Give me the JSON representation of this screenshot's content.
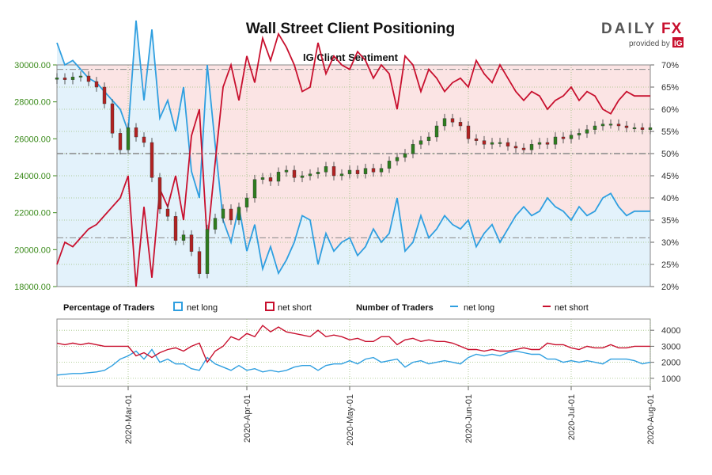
{
  "header": {
    "title": "Wall Street Client Positioning",
    "subtitle": "IG Client Sentiment",
    "logo_text_left": "DAILY",
    "logo_text_right": "FX",
    "logo_provided": "provided by",
    "logo_badge": "IG"
  },
  "colors": {
    "net_long": "#2f9fe0",
    "net_short": "#c8102e",
    "price_axis": "#3a8a1a",
    "candle_up": "#2e7d1f",
    "candle_down": "#b22222",
    "short_fill": "#fbe4e4",
    "long_fill": "#e3f2fb",
    "ref_line": "#888888"
  },
  "legend": {
    "pct_title": "Percentage of Traders",
    "pct_long": "net long",
    "pct_short": "net short",
    "num_title": "Number of Traders",
    "num_long": "net long",
    "num_short": "net short"
  },
  "chart_data": [
    {
      "type": "line",
      "title": "IG Client Sentiment",
      "x": [
        "2020-02-10",
        "2020-02-12",
        "2020-02-14",
        "2020-02-17",
        "2020-02-19",
        "2020-02-21",
        "2020-02-24",
        "2020-02-26",
        "2020-02-28",
        "2020-03-02",
        "2020-03-04",
        "2020-03-06",
        "2020-03-09",
        "2020-03-11",
        "2020-03-13",
        "2020-03-16",
        "2020-03-18",
        "2020-03-20",
        "2020-03-23",
        "2020-03-25",
        "2020-03-27",
        "2020-03-30",
        "2020-04-01",
        "2020-04-03",
        "2020-04-06",
        "2020-04-08",
        "2020-04-10",
        "2020-04-13",
        "2020-04-15",
        "2020-04-17",
        "2020-04-20",
        "2020-04-22",
        "2020-04-24",
        "2020-04-27",
        "2020-04-29",
        "2020-05-01",
        "2020-05-04",
        "2020-05-06",
        "2020-05-08",
        "2020-05-11",
        "2020-05-13",
        "2020-05-15",
        "2020-05-18",
        "2020-05-20",
        "2020-05-22",
        "2020-05-25",
        "2020-05-27",
        "2020-05-29",
        "2020-06-01",
        "2020-06-03",
        "2020-06-05",
        "2020-06-08",
        "2020-06-10",
        "2020-06-12",
        "2020-06-15",
        "2020-06-17",
        "2020-06-19",
        "2020-06-22",
        "2020-06-24",
        "2020-06-26",
        "2020-06-29",
        "2020-07-01",
        "2020-07-03",
        "2020-07-06",
        "2020-07-08",
        "2020-07-10",
        "2020-07-13",
        "2020-07-15",
        "2020-07-17",
        "2020-07-20",
        "2020-07-22",
        "2020-07-24",
        "2020-07-27",
        "2020-07-29",
        "2020-07-31",
        "2020-08-03"
      ],
      "series": [
        {
          "name": "net long",
          "axis": "right",
          "unit": "%",
          "values": [
            75,
            70,
            71,
            69,
            67,
            66,
            64,
            62,
            60,
            55,
            80,
            62,
            78,
            58,
            62,
            55,
            65,
            46,
            40,
            70,
            52,
            35,
            30,
            38,
            28,
            34,
            24,
            29,
            23,
            26,
            30,
            36,
            35,
            25,
            32,
            28,
            30,
            31,
            27,
            29,
            33,
            30,
            32,
            40,
            28,
            30,
            36,
            31,
            33,
            36,
            34,
            33,
            35,
            29,
            32,
            34,
            30,
            33,
            36,
            38,
            36,
            37,
            40,
            38,
            37,
            35,
            38,
            36,
            37,
            40,
            41,
            38,
            36,
            37,
            37,
            37
          ]
        },
        {
          "name": "net short",
          "axis": "right",
          "unit": "%",
          "values": [
            25,
            30,
            29,
            31,
            33,
            34,
            36,
            38,
            40,
            45,
            20,
            38,
            22,
            42,
            38,
            45,
            35,
            54,
            60,
            30,
            48,
            65,
            70,
            62,
            72,
            66,
            76,
            71,
            77,
            74,
            70,
            64,
            65,
            75,
            68,
            72,
            70,
            69,
            73,
            71,
            67,
            70,
            68,
            60,
            72,
            70,
            64,
            69,
            67,
            64,
            66,
            67,
            65,
            71,
            68,
            66,
            70,
            67,
            64,
            62,
            64,
            63,
            60,
            62,
            63,
            65,
            62,
            64,
            63,
            60,
            59,
            62,
            64,
            63,
            63,
            63
          ]
        },
        {
          "name": "Price",
          "axis": "left",
          "type": "candlestick",
          "values": [
            29300,
            29200,
            29350,
            29400,
            29100,
            28800,
            27900,
            26300,
            25400,
            26600,
            26100,
            25800,
            23900,
            22200,
            21800,
            20500,
            20800,
            19900,
            18700,
            21100,
            21700,
            22200,
            21600,
            22300,
            22800,
            23800,
            23900,
            23700,
            24200,
            24300,
            23900,
            24000,
            24100,
            24200,
            24500,
            24000,
            24100,
            24300,
            24100,
            24400,
            24200,
            24400,
            24800,
            25000,
            25200,
            25700,
            25900,
            26100,
            26700,
            27100,
            26900,
            26700,
            26000,
            25900,
            25700,
            25800,
            25800,
            25600,
            25500,
            25400,
            25700,
            25800,
            25700,
            26100,
            26000,
            26200,
            26300,
            26500,
            26700,
            26800,
            26800,
            26700,
            26600,
            26600,
            26500,
            26600
          ]
        }
      ],
      "y_left": {
        "min": 18000,
        "max": 30000,
        "ticks": [
          "18000.00",
          "20000.00",
          "22000.00",
          "24000.00",
          "26000.00",
          "28000.00",
          "30000.00"
        ]
      },
      "y_right": {
        "min": 20,
        "max": 70,
        "ticks": [
          "20%",
          "25%",
          "30%",
          "35%",
          "40%",
          "45%",
          "50%",
          "55%",
          "60%",
          "65%",
          "70%"
        ]
      },
      "ref_lines_pct": [
        31,
        50,
        69
      ],
      "grid": true
    },
    {
      "type": "line",
      "title": "",
      "series": [
        {
          "name": "net long",
          "values": [
            1200,
            1250,
            1300,
            1300,
            1350,
            1400,
            1500,
            1800,
            2200,
            2400,
            2700,
            2200,
            2800,
            2000,
            2200,
            1900,
            1900,
            1600,
            1500,
            2300,
            1900,
            1700,
            1500,
            1800,
            1500,
            1600,
            1400,
            1500,
            1400,
            1500,
            1700,
            1800,
            1800,
            1500,
            1800,
            1900,
            1900,
            2100,
            1900,
            2200,
            2300,
            2000,
            2100,
            2200,
            1700,
            2000,
            2100,
            1900,
            2000,
            2100,
            2000,
            1900,
            2300,
            2500,
            2400,
            2500,
            2400,
            2600,
            2700,
            2600,
            2500,
            2500,
            2200,
            2200,
            2000,
            2100,
            2000,
            2100,
            2000,
            1900,
            2200,
            2200,
            2200,
            2100,
            1900,
            2000
          ]
        },
        {
          "name": "net short",
          "values": [
            3200,
            3100,
            3200,
            3100,
            3200,
            3100,
            3000,
            3000,
            3000,
            3000,
            2400,
            2600,
            2300,
            2600,
            2800,
            2900,
            2700,
            3000,
            3200,
            2000,
            2700,
            3000,
            3600,
            3400,
            3800,
            3600,
            4300,
            3900,
            4200,
            3900,
            3800,
            3700,
            3600,
            4000,
            3600,
            3700,
            3600,
            3400,
            3500,
            3300,
            3300,
            3600,
            3600,
            3100,
            3400,
            3500,
            3300,
            3400,
            3300,
            3300,
            3200,
            3000,
            2800,
            2800,
            2700,
            2800,
            2700,
            2700,
            2800,
            2900,
            2800,
            2800,
            3200,
            3100,
            3100,
            2900,
            2800,
            3000,
            2900,
            2900,
            3100,
            2900,
            2900,
            3000,
            3000,
            3000
          ]
        }
      ],
      "y": {
        "min": 500,
        "max": 4700,
        "ticks": [
          "1000",
          "2000",
          "3000",
          "4000"
        ]
      },
      "x_ticks": [
        "2020-Mar-01",
        "2020-Apr-01",
        "2020-May-01",
        "2020-Jun-01",
        "2020-Jul-01",
        "2020-Aug-01"
      ],
      "grid": true
    }
  ]
}
